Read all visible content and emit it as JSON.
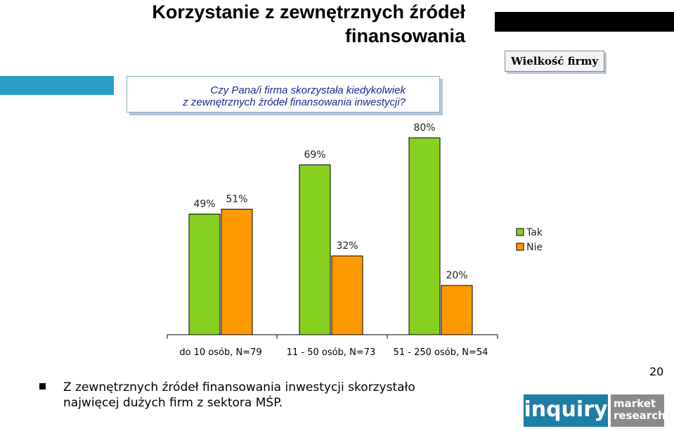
{
  "title": "Korzystanie z zewnętrznych źródeł finansowania",
  "size_label": "Wielkość firmy",
  "question": {
    "line1": "Czy Pana/i firma skorzystała kiedykolwiek",
    "line2": "z zewnętrznych źródeł finansowania inwestycji?"
  },
  "chart_data": {
    "type": "bar",
    "categories": [
      "do 10 osób, N=79",
      "11 - 50 osób, N=73",
      "51 - 250 osób, N=54"
    ],
    "series": [
      {
        "name": "Tak",
        "values": [
          49,
          69,
          80
        ],
        "labels": [
          "49%",
          "69%",
          "80%"
        ],
        "color": "#86d020"
      },
      {
        "name": "Nie",
        "values": [
          51,
          32,
          20
        ],
        "labels": [
          "51%",
          "32%",
          "20%"
        ],
        "color": "#ff9900"
      }
    ],
    "ylim": [
      0,
      100
    ],
    "legend": "right",
    "grid": false
  },
  "note": "Z zewnętrznych źródeł finansowania inwestycji skorzystało najwięcej dużych firm z sektora MŚP.",
  "page_number": "20",
  "logo": {
    "word1": "inquiry",
    "word2": "market",
    "word3": "research"
  }
}
